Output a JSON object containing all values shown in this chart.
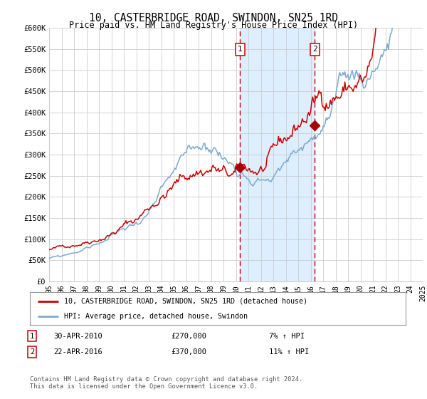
{
  "title": "10, CASTERBRIDGE ROAD, SWINDON, SN25 1RD",
  "subtitle": "Price paid vs. HM Land Registry's House Price Index (HPI)",
  "legend_line1": "10, CASTERBRIDGE ROAD, SWINDON, SN25 1RD (detached house)",
  "legend_line2": "HPI: Average price, detached house, Swindon",
  "annotation1_date": "30-APR-2010",
  "annotation1_price": "£270,000",
  "annotation1_hpi": "7% ↑ HPI",
  "annotation2_date": "22-APR-2016",
  "annotation2_price": "£370,000",
  "annotation2_hpi": "11% ↑ HPI",
  "footnote": "Contains HM Land Registry data © Crown copyright and database right 2024.\nThis data is licensed under the Open Government Licence v3.0.",
  "red_color": "#cc0000",
  "blue_color": "#7aabcf",
  "shade_color": "#ddeeff",
  "grid_color": "#cccccc",
  "bg_color": "#ffffff",
  "ylim": [
    0,
    600000
  ],
  "yticks": [
    0,
    50000,
    100000,
    150000,
    200000,
    250000,
    300000,
    350000,
    400000,
    450000,
    500000,
    550000,
    600000
  ],
  "year_start": 1995,
  "year_end": 2025,
  "sale1_year": 2010.33,
  "sale1_value": 270000,
  "sale2_year": 2016.32,
  "sale2_value": 370000,
  "marker_color": "#aa0000"
}
